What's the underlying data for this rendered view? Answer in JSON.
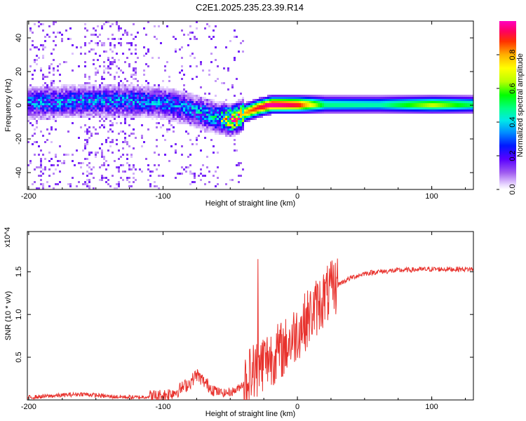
{
  "title": "C2E1.2025.235.23.39.R14",
  "chart_data": [
    {
      "type": "heatmap",
      "name": "spectrogram",
      "xlabel": "Height of straight line (km)",
      "ylabel": "Frequency (Hz)",
      "xlim": [
        -201,
        131
      ],
      "ylim": [
        -50,
        50
      ],
      "xticks": [
        -200,
        -100,
        0,
        100
      ],
      "yticks": [
        -40,
        -20,
        0,
        20,
        40
      ],
      "colorbar": {
        "label": "Normalized spectral amplitude",
        "range": [
          0,
          1
        ],
        "ticks": [
          0.0,
          0.2,
          0.4,
          0.6,
          0.8
        ]
      },
      "ridge": {
        "x": [
          -200,
          -160,
          -120,
          -100,
          -80,
          -60,
          -50,
          -45,
          -40,
          -30,
          -20,
          -10,
          0,
          20,
          60,
          90,
          100,
          110,
          130
        ],
        "freq": [
          2,
          3,
          3,
          2,
          -2,
          -7,
          -8,
          -7,
          -4,
          -1,
          1,
          1,
          1,
          1,
          1,
          1,
          1,
          1,
          1
        ],
        "amplitude": [
          0.35,
          0.35,
          0.35,
          0.35,
          0.35,
          0.45,
          0.9,
          0.9,
          0.8,
          0.92,
          0.98,
          0.95,
          0.9,
          0.48,
          0.45,
          0.6,
          0.65,
          0.6,
          0.5
        ]
      }
    },
    {
      "type": "line",
      "name": "snr",
      "xlabel": "Height of straight line (km)",
      "ylabel": "SNR (10 * v/v)",
      "y_multiplier": "x10^4",
      "xlim": [
        -201,
        131
      ],
      "ylim": [
        0,
        1.97
      ],
      "xticks": [
        -200,
        -100,
        0,
        100
      ],
      "yticks": [
        0.5,
        1.0,
        1.5
      ],
      "color": "#e8322d",
      "series": [
        {
          "name": "SNR",
          "x": [
            -200,
            -180,
            -160,
            -140,
            -120,
            -100,
            -90,
            -80,
            -75,
            -70,
            -65,
            -60,
            -55,
            -50,
            -45,
            -40,
            -35,
            -30,
            -25,
            -20,
            -15,
            -10,
            -5,
            0,
            10,
            20,
            30,
            40,
            50,
            60,
            80,
            100,
            120,
            131
          ],
          "y": [
            0.03,
            0.05,
            0.07,
            0.04,
            0.03,
            0.05,
            0.1,
            0.2,
            0.3,
            0.22,
            0.15,
            0.1,
            0.08,
            0.09,
            0.12,
            0.2,
            0.3,
            0.38,
            0.45,
            0.5,
            0.55,
            0.6,
            0.7,
            0.8,
            1.0,
            1.2,
            1.35,
            1.43,
            1.48,
            1.5,
            1.52,
            1.53,
            1.53,
            1.53
          ]
        }
      ]
    }
  ]
}
